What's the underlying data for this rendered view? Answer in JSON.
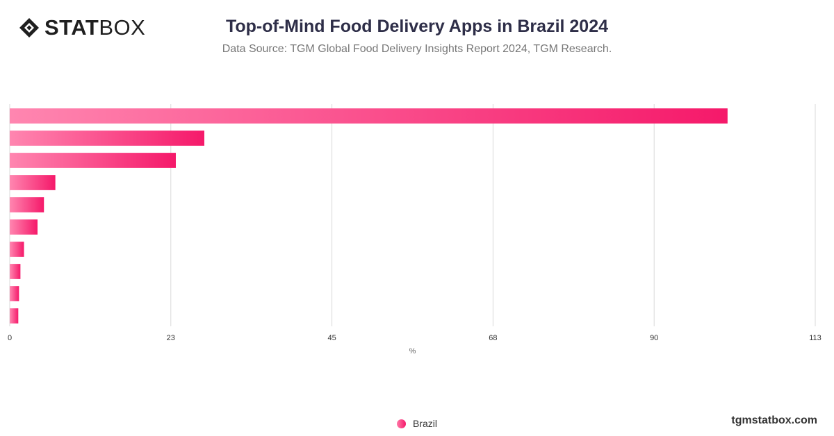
{
  "header": {
    "logo_bold": "STAT",
    "logo_light": "BOX",
    "title": "Top-of-Mind Food Delivery Apps in Brazil 2024",
    "subtitle": "Data Source: TGM Global Food Delivery Insights Report 2024, TGM Research."
  },
  "footer": {
    "source_url": "tgmstatbox.com"
  },
  "colors": {
    "bar_start": "#ff86b0",
    "bar_end": "#f5196a",
    "grid": "#d9d9d9",
    "text": "#333333"
  },
  "chart_data": {
    "type": "bar",
    "orientation": "horizontal",
    "title": "Top-of-Mind Food Delivery Apps in Brazil 2024",
    "subtitle": "Data Source: TGM Global Food Delivery Insights Report 2024, TGM Research.",
    "xlabel": "%",
    "ylabel": "",
    "xlim": [
      0,
      113
    ],
    "x_ticks": [
      "0",
      "23",
      "45",
      "68",
      "90",
      "113"
    ],
    "x_tick_values": [
      0,
      22.6,
      45.2,
      67.8,
      90.4,
      113
    ],
    "grid": true,
    "legend_position": "bottom-center",
    "series": [
      {
        "name": "Brazil",
        "values": [
          100.7,
          27.3,
          23.3,
          6.4,
          4.8,
          3.9,
          2.0,
          1.5,
          1.3,
          1.2
        ]
      }
    ]
  }
}
